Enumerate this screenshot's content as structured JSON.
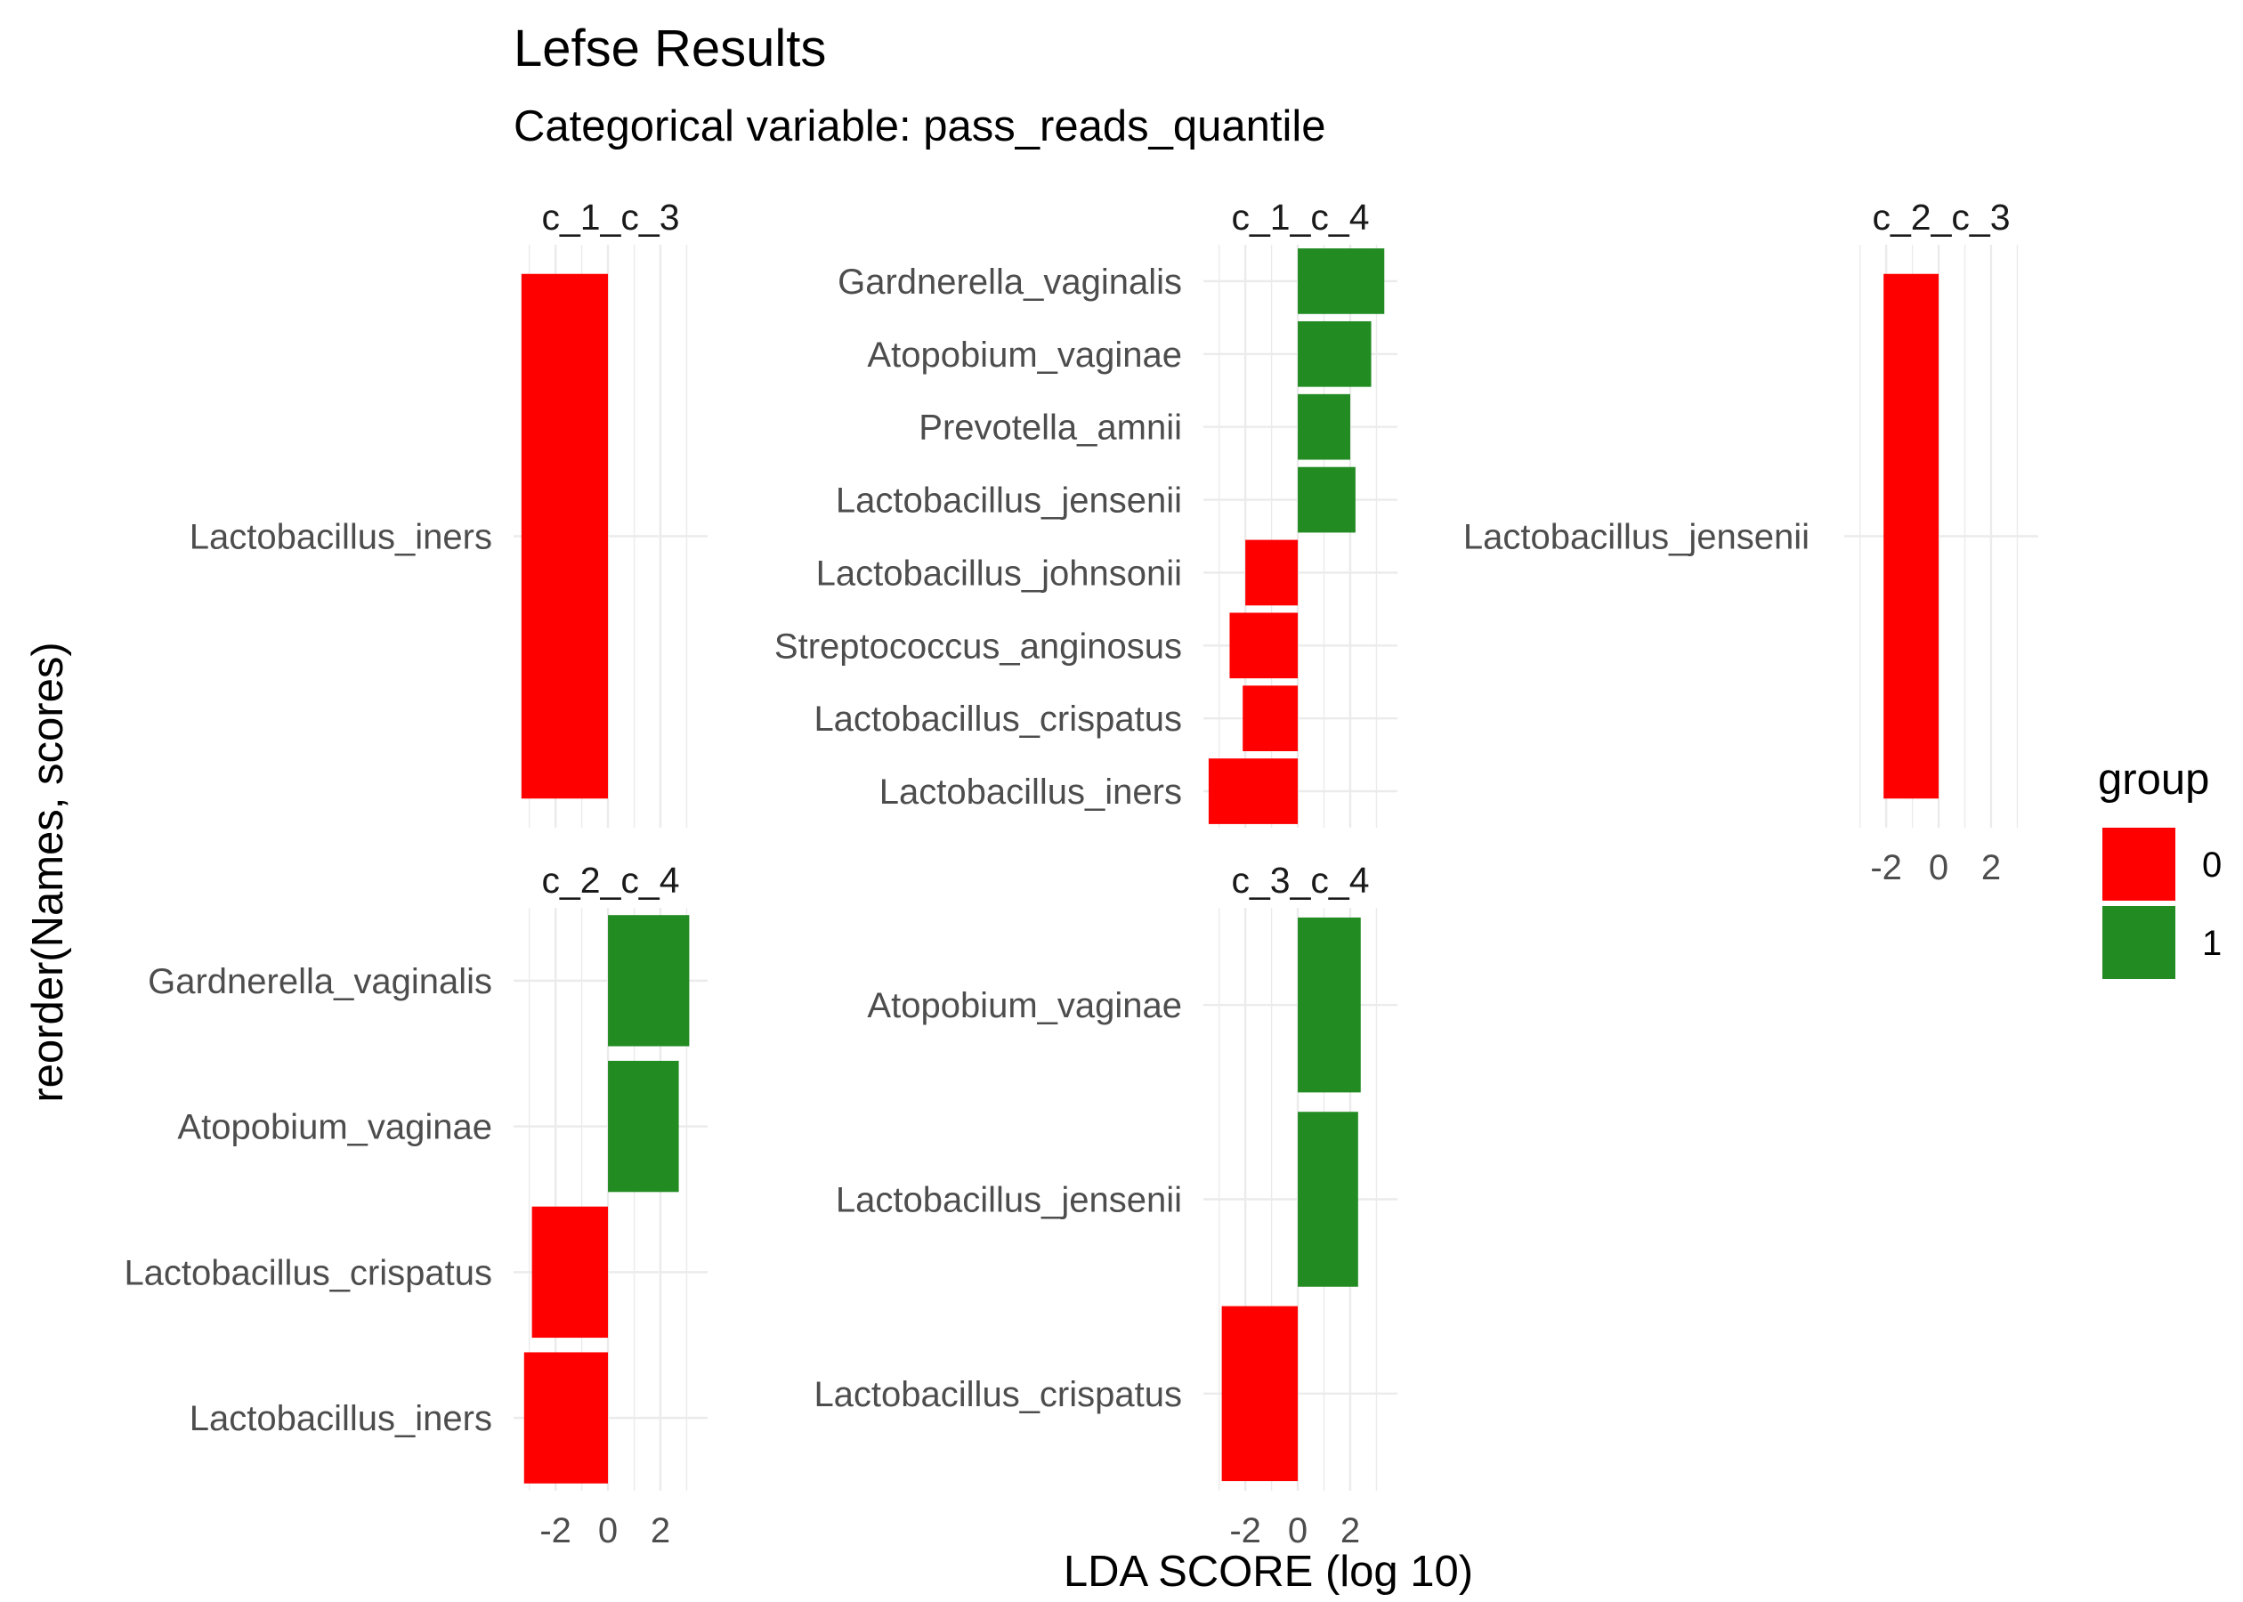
{
  "chart_data": {
    "type": "bar",
    "orientation": "horizontal",
    "title": "Lefse Results",
    "subtitle": "Categorical variable: pass_reads_quantile",
    "xlabel": "LDA SCORE (log 10)",
    "ylabel": "reorder(Names, scores)",
    "x_ticks": [
      "-2",
      "0",
      "2"
    ],
    "grid": true,
    "legend": {
      "title": "group",
      "position": "right",
      "entries": [
        {
          "label": "0",
          "color": "#ff0000"
        },
        {
          "label": "1",
          "color": "#228b22"
        }
      ]
    },
    "facets": [
      {
        "name": "c_1_c_3",
        "xlim": [
          -3.6,
          3.8
        ],
        "show_x_axis": false,
        "bars": [
          {
            "name": "Lactobacillus_iners",
            "value": -3.3,
            "group": "0"
          }
        ]
      },
      {
        "name": "c_1_c_4",
        "xlim": [
          -3.6,
          3.8
        ],
        "show_x_axis": false,
        "bars": [
          {
            "name": "Gardnerella_vaginalis",
            "value": 3.3,
            "group": "1"
          },
          {
            "name": "Atopobium_vaginae",
            "value": 2.8,
            "group": "1"
          },
          {
            "name": "Prevotella_amnii",
            "value": 2.0,
            "group": "1"
          },
          {
            "name": "Lactobacillus_jensenii",
            "value": 2.2,
            "group": "1"
          },
          {
            "name": "Lactobacillus_johnsonii",
            "value": -2.0,
            "group": "0"
          },
          {
            "name": "Streptococcus_anginosus",
            "value": -2.6,
            "group": "0"
          },
          {
            "name": "Lactobacillus_crispatus",
            "value": -2.1,
            "group": "0"
          },
          {
            "name": "Lactobacillus_iners",
            "value": -3.4,
            "group": "0"
          }
        ]
      },
      {
        "name": "c_2_c_3",
        "xlim": [
          -3.6,
          3.8
        ],
        "show_x_axis": true,
        "bars": [
          {
            "name": "Lactobacillus_jensenii",
            "value": -2.1,
            "group": "0"
          }
        ]
      },
      {
        "name": "c_2_c_4",
        "xlim": [
          -3.6,
          3.8
        ],
        "show_x_axis": true,
        "bars": [
          {
            "name": "Gardnerella_vaginalis",
            "value": 3.1,
            "group": "1"
          },
          {
            "name": "Atopobium_vaginae",
            "value": 2.7,
            "group": "1"
          },
          {
            "name": "Lactobacillus_crispatus",
            "value": -2.9,
            "group": "0"
          },
          {
            "name": "Lactobacillus_iners",
            "value": -3.2,
            "group": "0"
          }
        ]
      },
      {
        "name": "c_3_c_4",
        "xlim": [
          -3.6,
          3.8
        ],
        "show_x_axis": true,
        "bars": [
          {
            "name": "Atopobium_vaginae",
            "value": 2.4,
            "group": "1"
          },
          {
            "name": "Lactobacillus_jensenii",
            "value": 2.3,
            "group": "1"
          },
          {
            "name": "Lactobacillus_crispatus",
            "value": -2.9,
            "group": "0"
          }
        ]
      }
    ]
  }
}
